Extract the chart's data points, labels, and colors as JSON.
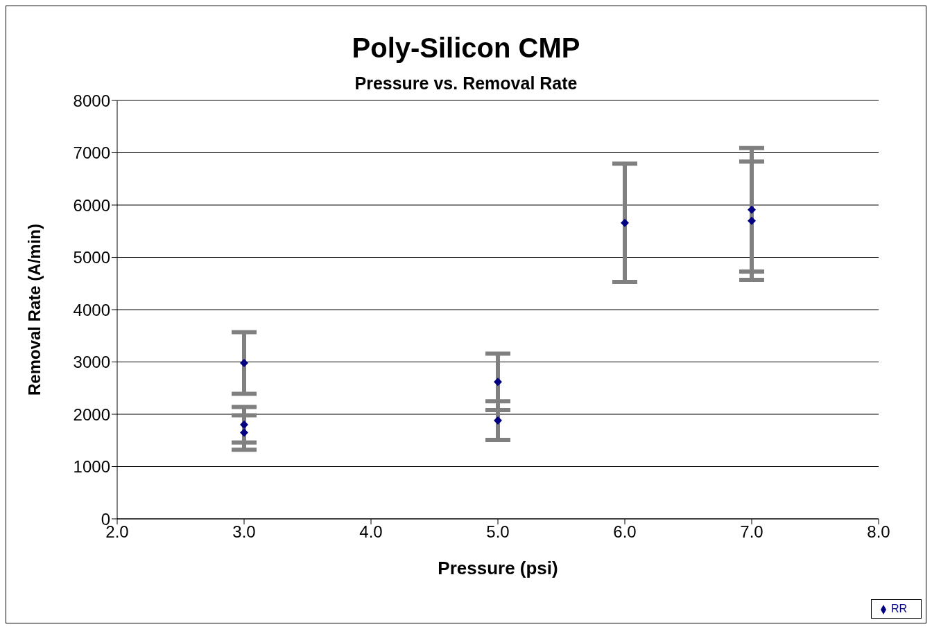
{
  "chart_data": {
    "type": "scatter",
    "title": "Poly-Silicon CMP",
    "subtitle": "Pressure vs. Removal Rate",
    "xlabel": "Pressure  (psi)",
    "ylabel": "Removal Rate  (A/min)",
    "x": [
      3,
      3,
      3,
      5,
      5,
      6,
      7,
      7
    ],
    "series": [
      {
        "name": "RR",
        "color": "#000080",
        "values": [
          2980,
          1800,
          1650,
          2620,
          1880,
          5660,
          5910,
          5700
        ],
        "errors": [
          590,
          340,
          330,
          540,
          370,
          1130,
          1180,
          1130
        ]
      }
    ],
    "xlim": [
      2,
      8
    ],
    "xticks": [
      {
        "value": 2,
        "label": "2.0"
      },
      {
        "value": 3,
        "label": "3.0"
      },
      {
        "value": 4,
        "label": "4.0"
      },
      {
        "value": 5,
        "label": "5.0"
      },
      {
        "value": 6,
        "label": "6.0"
      },
      {
        "value": 7,
        "label": "7.0"
      },
      {
        "value": 8,
        "label": "8.0"
      }
    ],
    "ylim": [
      0,
      8000
    ],
    "yticks": [
      0,
      1000,
      2000,
      3000,
      4000,
      5000,
      6000,
      7000,
      8000
    ],
    "grid": "y",
    "legend": "bottom right",
    "marker": "diamond"
  }
}
